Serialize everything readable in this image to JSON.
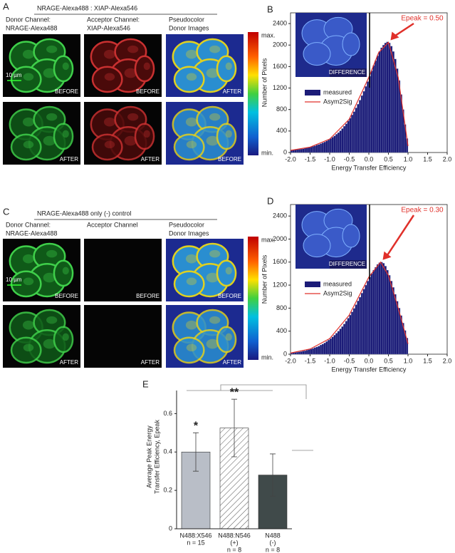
{
  "image_panels": [
    {
      "letter": "A",
      "header": "NRAGE-Alexa488 : XIAP-Alexa546",
      "columns": [
        [
          "Donor Channel:",
          "NRAGE-Alexa488"
        ],
        [
          "Acceptor Channel:",
          "XIAP-Alexa546"
        ],
        [
          "Pseudocolor",
          "Donor Images"
        ]
      ],
      "rows": [
        [
          "BEFORE",
          "BEFORE",
          "AFTER"
        ],
        [
          "AFTER",
          "AFTER",
          "BEFORE"
        ]
      ],
      "scale_bar": "10 µm",
      "colorbar": {
        "max": "max.",
        "min": "min."
      }
    },
    {
      "letter": "C",
      "header": "NRAGE-Alexa488 only (-) control",
      "columns": [
        [
          "Donor Channel:",
          "NRAGE-Alexa488"
        ],
        [
          "Acceptor Channel"
        ],
        [
          "Pseudocolor",
          "Donor Images"
        ]
      ],
      "rows": [
        [
          "BEFORE",
          "BEFORE",
          "BEFORE"
        ],
        [
          "AFTER",
          "AFTER",
          "AFTER"
        ]
      ],
      "scale_bar": "10 µm",
      "colorbar": {
        "max": "max.",
        "min": "min."
      }
    }
  ],
  "chart_data": [
    {
      "panel": "B",
      "type": "histogram",
      "xlabel": "Energy Transfer Efficiency",
      "ylabel": "Number of Pixels",
      "annotation": "Epeak = 0.50",
      "inset_label": "DIFFERENCE",
      "bins": [
        -2,
        -1.95,
        -1.9,
        -1.85,
        -1.8,
        -1.75,
        -1.7,
        -1.65,
        -1.6,
        -1.55,
        -1.5,
        -1.45,
        -1.4,
        -1.35,
        -1.3,
        -1.25,
        -1.2,
        -1.15,
        -1.1,
        -1.05,
        -1,
        -0.95,
        -0.9,
        -0.85,
        -0.8,
        -0.75,
        -0.7,
        -0.65,
        -0.6,
        -0.55,
        -0.5,
        -0.45,
        -0.4,
        -0.35,
        -0.3,
        -0.25,
        -0.2,
        -0.15,
        -0.1,
        -0.05,
        0,
        0.05,
        0.1,
        0.15,
        0.2,
        0.25,
        0.3,
        0.35,
        0.4,
        0.45,
        0.5,
        0.55,
        0.6,
        0.65,
        0.7,
        0.75,
        0.8,
        0.85,
        0.9,
        0.95,
        1
      ],
      "series": [
        {
          "name": "measured",
          "color": "#1c1c78",
          "values": [
            40,
            45,
            50,
            55,
            60,
            65,
            70,
            80,
            90,
            95,
            105,
            115,
            125,
            140,
            150,
            165,
            180,
            195,
            215,
            235,
            260,
            285,
            310,
            340,
            370,
            405,
            445,
            490,
            535,
            585,
            640,
            700,
            760,
            830,
            900,
            975,
            1060,
            1140,
            1230,
            1320,
            1420,
            1520,
            1620,
            1710,
            1800,
            1880,
            1950,
            2000,
            2040,
            2060,
            2040,
            1980,
            1880,
            1740,
            1560,
            1340,
            1080,
            800,
            520,
            260
          ]
        },
        {
          "name": "Asym2Sig",
          "type": "line",
          "color": "#e0302a",
          "x": [
            -2,
            -1.5,
            -1,
            -0.5,
            0,
            0.25,
            0.5,
            0.75,
            1
          ],
          "values": [
            40,
            100,
            250,
            620,
            1400,
            1860,
            2050,
            1400,
            120
          ]
        }
      ],
      "xlim": [
        -2,
        2
      ],
      "ylim": [
        0,
        2600
      ],
      "xticks": [
        {
          "value": -2,
          "label": "-2.0"
        },
        {
          "value": -1.5,
          "label": "-1.5"
        },
        {
          "value": -1,
          "label": "-1.0"
        },
        {
          "value": -0.5,
          "label": "-0.5"
        },
        {
          "value": 0,
          "label": "0.0"
        },
        {
          "value": 0.5,
          "label": "0.5"
        },
        {
          "value": 1,
          "label": "1.0"
        },
        {
          "value": 1.5,
          "label": "1.5"
        },
        {
          "value": 2,
          "label": "2.0"
        }
      ],
      "yticks": [
        0,
        400,
        800,
        1200,
        1600,
        2000,
        2400
      ]
    },
    {
      "panel": "D",
      "type": "histogram",
      "xlabel": "Energy Transfer Efficiency",
      "ylabel": "Number of Pixels",
      "annotation": "Epeak = 0.30",
      "inset_label": "DIFFERENCE",
      "bins": [
        -2,
        -1.95,
        -1.9,
        -1.85,
        -1.8,
        -1.75,
        -1.7,
        -1.65,
        -1.6,
        -1.55,
        -1.5,
        -1.45,
        -1.4,
        -1.35,
        -1.3,
        -1.25,
        -1.2,
        -1.15,
        -1.1,
        -1.05,
        -1,
        -0.95,
        -0.9,
        -0.85,
        -0.8,
        -0.75,
        -0.7,
        -0.65,
        -0.6,
        -0.55,
        -0.5,
        -0.45,
        -0.4,
        -0.35,
        -0.3,
        -0.25,
        -0.2,
        -0.15,
        -0.1,
        -0.05,
        0,
        0.05,
        0.1,
        0.15,
        0.2,
        0.25,
        0.3,
        0.35,
        0.4,
        0.45,
        0.5,
        0.55,
        0.6,
        0.65,
        0.7,
        0.75,
        0.8,
        0.85,
        0.9,
        0.95,
        1
      ],
      "series": [
        {
          "name": "measured",
          "color": "#1c1c78",
          "values": [
            20,
            25,
            30,
            35,
            40,
            45,
            55,
            60,
            70,
            80,
            90,
            100,
            115,
            125,
            140,
            160,
            175,
            195,
            220,
            245,
            270,
            300,
            330,
            365,
            400,
            440,
            480,
            525,
            575,
            625,
            680,
            735,
            795,
            860,
            925,
            990,
            1060,
            1130,
            1200,
            1270,
            1340,
            1400,
            1460,
            1510,
            1560,
            1590,
            1600,
            1580,
            1530,
            1460,
            1370,
            1270,
            1160,
            1040,
            920,
            800,
            670,
            540,
            410,
            280
          ]
        },
        {
          "name": "Asym2Sig",
          "type": "line",
          "color": "#e0302a",
          "x": [
            -2,
            -1.5,
            -1,
            -0.5,
            0,
            0.3,
            0.5,
            0.75,
            1
          ],
          "values": [
            20,
            90,
            270,
            680,
            1340,
            1600,
            1370,
            800,
            180
          ]
        }
      ],
      "xlim": [
        -2,
        2
      ],
      "ylim": [
        0,
        2600
      ],
      "xticks": [
        {
          "value": -2,
          "label": "-2.0"
        },
        {
          "value": -1.5,
          "label": "-1.5"
        },
        {
          "value": -1,
          "label": "-1.0"
        },
        {
          "value": -0.5,
          "label": "-0.5"
        },
        {
          "value": 0,
          "label": "0.0"
        },
        {
          "value": 0.5,
          "label": "0.5"
        },
        {
          "value": 1,
          "label": "1.0"
        },
        {
          "value": 1.5,
          "label": "1.5"
        },
        {
          "value": 2,
          "label": "2.0"
        }
      ],
      "yticks": [
        0,
        400,
        800,
        1200,
        1600,
        2000,
        2400
      ]
    },
    {
      "panel": "E",
      "type": "bar",
      "ylabel": [
        "Average Peak Energy",
        "Transfer Efficiency, Epeak"
      ],
      "categories": [
        "N488:X546",
        "N488:N546",
        "N488"
      ],
      "sublabels": [
        [
          "n = 15"
        ],
        [
          "(+)",
          "n = 8"
        ],
        [
          "(-)",
          "n = 8"
        ]
      ],
      "values": [
        0.4,
        0.525,
        0.28
      ],
      "errors": [
        0.1,
        0.15,
        0.11
      ],
      "colors": [
        "#b9bec7",
        "#ffffff",
        "#404a4a"
      ],
      "hatch": [
        false,
        true,
        false
      ],
      "significance": [
        "*",
        "**",
        null
      ],
      "ylim": [
        0,
        0.75
      ],
      "yticks": [
        0,
        0.2,
        0.4,
        0.6
      ]
    }
  ]
}
